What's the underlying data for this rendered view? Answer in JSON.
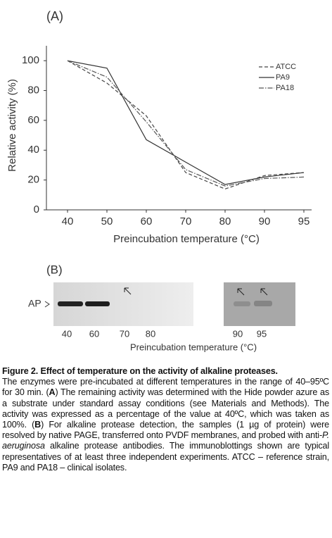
{
  "chart_data": {
    "type": "line",
    "panel_label": "(A)",
    "y_label": "Relative activity (%)",
    "x_label": "Preincubation temperature (°C)",
    "categories": [
      "40",
      "50",
      "60",
      "70",
      "80",
      "90",
      "95"
    ],
    "series": [
      {
        "name": "ATCC",
        "color": "#444444",
        "style": "dashed",
        "values": [
          100,
          85,
          63,
          25,
          14,
          23,
          25
        ]
      },
      {
        "name": "PA9",
        "color": "#333333",
        "style": "solid",
        "values": [
          100,
          95,
          47,
          32,
          17,
          22,
          25
        ]
      },
      {
        "name": "PA18",
        "color": "#555555",
        "style": "dashdot",
        "values": [
          100,
          89,
          59,
          27,
          16,
          21,
          22
        ]
      }
    ],
    "ylim": [
      0,
      110
    ],
    "yticks": [
      0,
      20,
      40,
      60,
      80,
      100
    ],
    "legend": "upper right"
  },
  "panel_b": {
    "label": "(B)",
    "marker": "AP",
    "lanes_left": [
      "40",
      "60",
      "70",
      "80"
    ],
    "lanes_right": [
      "90",
      "95"
    ],
    "x_label": "Preincubation temperature (°C)"
  },
  "caption": {
    "title": "Figure 2. Effect of temperature on the activity of alkaline proteases.",
    "body": [
      "The enzymes were pre-incubated at different temperatures in the range of 40–95ºC for 30 min. (",
      "A",
      ") The remaining activity was determined with the Hide powder azure as a substrate under standard assay conditions (see Materials and Methods). The activity was expressed as a percentage of the value at 40ºC, which was taken as 100%. (",
      "B",
      ") For alkaline protease detection, the samples (1 µg of protein) were resolved by native PAGE, transferred onto PVDF membranes, and probed with anti-",
      "P. aeruginosa",
      " alkaline protease antibodies. The immunoblottings shown are typical representatives of at least three independent experiments. ATCC – reference strain, PA9 and PA18 – clinical isolates."
    ]
  }
}
